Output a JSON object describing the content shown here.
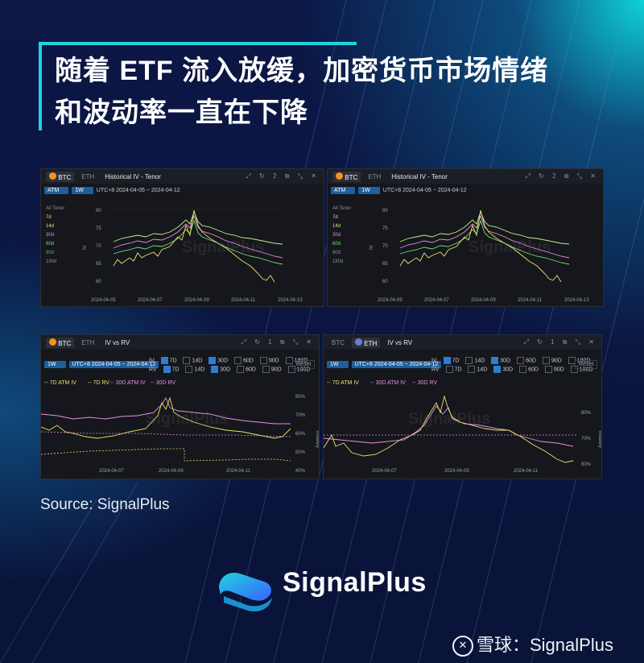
{
  "headline": {
    "line1": "随着 ETF 流入放缓，加密货币市场情绪",
    "line2": "和波动率一直在下降"
  },
  "colors": {
    "accent": "#1fd3de",
    "background": "#0b1540",
    "panel": "#15171c"
  },
  "panels": [
    {
      "coin_a": "BTC",
      "coin_b": "ETH",
      "title": "Historical IV - Tenor",
      "mode": "ATM",
      "window": "1W",
      "range": "UTC+8 2024-04-05 ~ 2024-04-12",
      "tenor_header": "All Tenor",
      "tenors": [
        "7d",
        "14d",
        "30d",
        "60d",
        "90d",
        "180d"
      ],
      "ylabel": "IV",
      "yticks": [
        "80",
        "75",
        "70",
        "65",
        "60"
      ],
      "xticks": [
        "2024-04-05",
        "2024-04-07",
        "2024-04-09",
        "2024-04-11",
        "2024-04-13"
      ],
      "watermark": "SignalPlus"
    },
    {
      "coin_a": "BTC",
      "coin_b": "ETH",
      "title": "Historical IV - Tenor",
      "mode": "ATM",
      "window": "1W",
      "range": "UTC+8 2024-04-05 ~ 2024-04-12",
      "tenor_header": "All Tenor",
      "tenors": [
        "7d",
        "14d",
        "30d",
        "60d",
        "90d",
        "180d"
      ],
      "ylabel": "IV",
      "yticks": [
        "80",
        "75",
        "70",
        "65",
        "60"
      ],
      "xticks": [
        "2024-04-05",
        "2024-04-07",
        "2024-04-09",
        "2024-04-11",
        "2024-04-13"
      ],
      "watermark": "SignalPlus"
    },
    {
      "coin_a": "BTC",
      "coin_b": "ETH",
      "title": "IV vs RV",
      "window": "1W",
      "range": "UTC+8 2024-04-05 ~ 2024-04-12",
      "iv_label": "IV",
      "rv_label": "RV",
      "terms": [
        "7D",
        "14D",
        "30D",
        "60D",
        "90D",
        "180D"
      ],
      "reset": "Reset",
      "legend": [
        "7D ATM IV",
        "7D RV",
        "30D ATM IV",
        "30D RV"
      ],
      "yticks": [
        "80%",
        "70%",
        "60%",
        "50%",
        "40%"
      ],
      "ylabel": "Volatility",
      "xticks": [
        "2024-04-07",
        "2024-04-09",
        "2024-04-11"
      ],
      "watermark": "SignalPlus"
    },
    {
      "coin_a": "BTC",
      "coin_b": "ETH",
      "title": "IV vs RV",
      "window": "1W",
      "range": "UTC+8 2024-04-05 ~ 2024-04-12",
      "iv_label": "IV",
      "rv_label": "RV",
      "terms": [
        "7D",
        "14D",
        "30D",
        "60D",
        "90D",
        "180D"
      ],
      "reset": "Reset",
      "legend": [
        "7D ATM IV",
        "30D ATM IV",
        "30D RV"
      ],
      "yticks": [
        "80%",
        "70%",
        "60%"
      ],
      "ylabel": "Volatility",
      "xticks": [
        "2024-04-07",
        "2024-04-09",
        "2024-04-11"
      ],
      "watermark": "SignalPlus"
    }
  ],
  "source": "Source: SignalPlus",
  "brand": "SignalPlus",
  "footer_watermark": "雪球：SignalPlus"
}
